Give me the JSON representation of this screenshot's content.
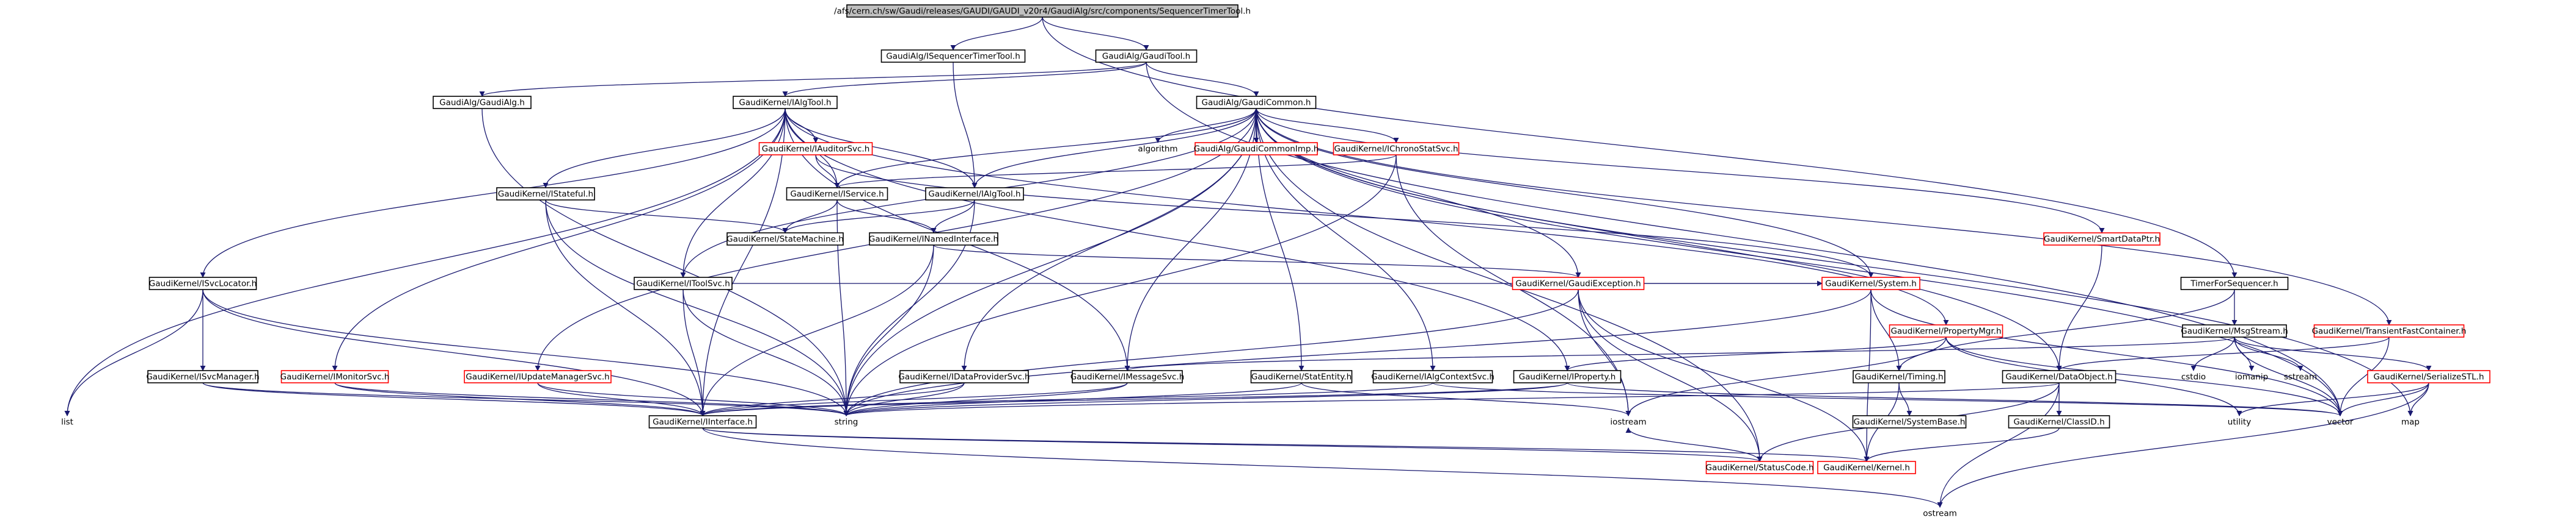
{
  "graph": {
    "nodes": [
      {
        "id": "root",
        "label": "/afs/cern.ch/sw/Gaudi/releases/GAUDI/GAUDI_v20r4/GaudiAlg/src/components/SequencerTimerTool.h",
        "style": "root"
      },
      {
        "id": "seqtt",
        "label": "GaudiAlg/ISequencerTimerTool.h",
        "style": "normal"
      },
      {
        "id": "gtool",
        "label": "GaudiAlg/GaudiTool.h",
        "style": "normal"
      },
      {
        "id": "tfs",
        "label": "TimerForSequencer.h",
        "style": "normal"
      },
      {
        "id": "galg",
        "label": "GaudiAlg/GaudiAlg.h",
        "style": "normal"
      },
      {
        "id": "ialgtool",
        "label": "GaudiKernel/IAlgTool.h",
        "style": "normal"
      },
      {
        "id": "gcommon",
        "label": "GaudiAlg/GaudiCommon.h",
        "style": "normal"
      },
      {
        "id": "algorithm",
        "label": "algorithm",
        "style": "plain"
      },
      {
        "id": "gcommonimp",
        "label": "GaudiAlg/GaudiCommonImp.h",
        "style": "missing"
      },
      {
        "id": "chrono",
        "label": "GaudiKernel/IChronoStatSvc.h",
        "style": "missing"
      },
      {
        "id": "iauditor",
        "label": "GaudiKernel/IAuditorSvc.h",
        "style": "missing"
      },
      {
        "id": "istateful",
        "label": "GaudiKernel/IStateful.h",
        "style": "normal"
      },
      {
        "id": "iservice",
        "label": "GaudiKernel/IService.h",
        "style": "normal"
      },
      {
        "id": "ialgtool2",
        "label": "GaudiKernel/IAlgTool.h",
        "style": "normal"
      },
      {
        "id": "smartdata",
        "label": "GaudiKernel/SmartDataPtr.h",
        "style": "missing"
      },
      {
        "id": "statemachine",
        "label": "GaudiKernel/StateMachine.h",
        "style": "normal"
      },
      {
        "id": "inamed",
        "label": "GaudiKernel/INamedInterface.h",
        "style": "normal"
      },
      {
        "id": "itoolsvc",
        "label": "GaudiKernel/IToolSvc.h",
        "style": "normal"
      },
      {
        "id": "gexception",
        "label": "GaudiKernel/GaudiException.h",
        "style": "missing"
      },
      {
        "id": "isvclocator",
        "label": "GaudiKernel/ISvcLocator.h",
        "style": "normal"
      },
      {
        "id": "system",
        "label": "GaudiKernel/System.h",
        "style": "missing"
      },
      {
        "id": "propmgr",
        "label": "GaudiKernel/PropertyMgr.h",
        "style": "missing"
      },
      {
        "id": "msgstream",
        "label": "GaudiKernel/MsgStream.h",
        "style": "normal"
      },
      {
        "id": "transientfast",
        "label": "GaudiKernel/TransientFastContainer.h",
        "style": "missing"
      },
      {
        "id": "isvcmanager",
        "label": "GaudiKernel/ISvcManager.h",
        "style": "normal"
      },
      {
        "id": "imonitor",
        "label": "GaudiKernel/IMonitorSvc.h",
        "style": "missing"
      },
      {
        "id": "iupdatemgr",
        "label": "GaudiKernel/IUpdateManagerSvc.h",
        "style": "missing"
      },
      {
        "id": "idataprovider",
        "label": "GaudiKernel/IDataProviderSvc.h",
        "style": "normal"
      },
      {
        "id": "imessage",
        "label": "GaudiKernel/IMessageSvc.h",
        "style": "normal"
      },
      {
        "id": "statentity",
        "label": "GaudiKernel/StatEntity.h",
        "style": "normal"
      },
      {
        "id": "ialgcontext",
        "label": "GaudiKernel/IAlgContextSvc.h",
        "style": "normal"
      },
      {
        "id": "iproperty",
        "label": "GaudiKernel/IProperty.h",
        "style": "normal"
      },
      {
        "id": "timing",
        "label": "GaudiKernel/Timing.h",
        "style": "normal"
      },
      {
        "id": "dataobject",
        "label": "GaudiKernel/DataObject.h",
        "style": "normal"
      },
      {
        "id": "cstdio",
        "label": "cstdio",
        "style": "plain"
      },
      {
        "id": "iomanip",
        "label": "iomanip",
        "style": "plain"
      },
      {
        "id": "sstream",
        "label": "sstream",
        "style": "plain"
      },
      {
        "id": "serialize",
        "label": "GaudiKernel/SerializeSTL.h",
        "style": "missing"
      },
      {
        "id": "list",
        "label": "list",
        "style": "plain"
      },
      {
        "id": "iinterface",
        "label": "GaudiKernel/IInterface.h",
        "style": "normal"
      },
      {
        "id": "string",
        "label": "string",
        "style": "plain"
      },
      {
        "id": "iostream",
        "label": "iostream",
        "style": "plain"
      },
      {
        "id": "systembase",
        "label": "GaudiKernel/SystemBase.h",
        "style": "normal"
      },
      {
        "id": "classid",
        "label": "GaudiKernel/ClassID.h",
        "style": "normal"
      },
      {
        "id": "utility",
        "label": "utility",
        "style": "plain"
      },
      {
        "id": "vector",
        "label": "vector",
        "style": "plain"
      },
      {
        "id": "map",
        "label": "map",
        "style": "plain"
      },
      {
        "id": "statuscode",
        "label": "GaudiKernel/StatusCode.h",
        "style": "missing"
      },
      {
        "id": "kernel",
        "label": "GaudiKernel/Kernel.h",
        "style": "missing"
      },
      {
        "id": "ostream",
        "label": "ostream",
        "style": "plain"
      }
    ],
    "edges": [
      [
        "root",
        "seqtt"
      ],
      [
        "root",
        "gtool"
      ],
      [
        "root",
        "tfs"
      ],
      [
        "seqtt",
        "ialgtool2"
      ],
      [
        "gtool",
        "galg"
      ],
      [
        "gtool",
        "ialgtool"
      ],
      [
        "gtool",
        "gcommon"
      ],
      [
        "gtool",
        "vector"
      ],
      [
        "galg",
        "string"
      ],
      [
        "tfs",
        "msgstream"
      ],
      [
        "tfs",
        "timing"
      ],
      [
        "ialgtool",
        "list"
      ],
      [
        "ialgtool",
        "isvclocator"
      ],
      [
        "ialgtool",
        "istateful"
      ],
      [
        "ialgtool",
        "iauditor"
      ],
      [
        "ialgtool",
        "iservice"
      ],
      [
        "ialgtool",
        "ialgtool2"
      ],
      [
        "ialgtool",
        "imessage"
      ],
      [
        "ialgtool",
        "iproperty"
      ],
      [
        "ialgtool",
        "imonitor"
      ],
      [
        "ialgtool",
        "itoolsvc"
      ],
      [
        "ialgtool",
        "propmgr"
      ],
      [
        "ialgtool",
        "iinterface"
      ],
      [
        "gcommon",
        "algorithm"
      ],
      [
        "gcommon",
        "gcommonimp"
      ],
      [
        "gcommon",
        "chrono"
      ],
      [
        "gcommon",
        "iservice"
      ],
      [
        "gcommon",
        "ialgtool2"
      ],
      [
        "gcommon",
        "smartdata"
      ],
      [
        "gcommon",
        "itoolsvc"
      ],
      [
        "gcommon",
        "gexception"
      ],
      [
        "gcommon",
        "system"
      ],
      [
        "gcommon",
        "iupdatemgr"
      ],
      [
        "gcommon",
        "idataprovider"
      ],
      [
        "gcommon",
        "imessage"
      ],
      [
        "gcommon",
        "statentity"
      ],
      [
        "gcommon",
        "ialgcontext"
      ],
      [
        "gcommon",
        "dataobject"
      ],
      [
        "gcommon",
        "transientfast"
      ],
      [
        "gcommon",
        "string"
      ],
      [
        "gcommon",
        "statuscode"
      ],
      [
        "gcommon",
        "vector"
      ],
      [
        "gcommon",
        "map"
      ],
      [
        "gcommonimp",
        "gcommon"
      ],
      [
        "chrono",
        "iservice"
      ],
      [
        "chrono",
        "string"
      ],
      [
        "chrono",
        "iostream"
      ],
      [
        "iauditor",
        "iservice"
      ],
      [
        "iauditor",
        "system"
      ],
      [
        "istateful",
        "statemachine"
      ],
      [
        "istateful",
        "iinterface"
      ],
      [
        "istateful",
        "string"
      ],
      [
        "iservice",
        "statemachine"
      ],
      [
        "iservice",
        "inamed"
      ],
      [
        "iservice",
        "string"
      ],
      [
        "ialgtool2",
        "statemachine"
      ],
      [
        "ialgtool2",
        "inamed"
      ],
      [
        "ialgtool2",
        "string"
      ],
      [
        "inamed",
        "iinterface"
      ],
      [
        "inamed",
        "string"
      ],
      [
        "inamed",
        "gexception"
      ],
      [
        "smartdata",
        "dataobject"
      ],
      [
        "itoolsvc",
        "iinterface"
      ],
      [
        "itoolsvc",
        "string"
      ],
      [
        "itoolsvc",
        "system"
      ],
      [
        "gexception",
        "system"
      ],
      [
        "gexception",
        "statuscode"
      ],
      [
        "gexception",
        "string"
      ],
      [
        "gexception",
        "iostream"
      ],
      [
        "gexception",
        "kernel"
      ],
      [
        "isvclocator",
        "isvcmanager"
      ],
      [
        "isvclocator",
        "list"
      ],
      [
        "isvclocator",
        "iinterface"
      ],
      [
        "isvclocator",
        "string"
      ],
      [
        "isvcmanager",
        "iinterface"
      ],
      [
        "isvcmanager",
        "string"
      ],
      [
        "imonitor",
        "iinterface"
      ],
      [
        "imonitor",
        "string"
      ],
      [
        "iupdatemgr",
        "iinterface"
      ],
      [
        "iupdatemgr",
        "string"
      ],
      [
        "idataprovider",
        "iinterface"
      ],
      [
        "idataprovider",
        "string"
      ],
      [
        "imessage",
        "iinterface"
      ],
      [
        "imessage",
        "string"
      ],
      [
        "statentity",
        "string"
      ],
      [
        "statentity",
        "iostream"
      ],
      [
        "ialgcontext",
        "iinterface"
      ],
      [
        "ialgcontext",
        "vector"
      ],
      [
        "iproperty",
        "iinterface"
      ],
      [
        "iproperty",
        "string"
      ],
      [
        "iproperty",
        "vector"
      ],
      [
        "propmgr",
        "iproperty"
      ],
      [
        "propmgr",
        "vector"
      ],
      [
        "propmgr",
        "utility"
      ],
      [
        "propmgr",
        "iostream"
      ],
      [
        "system",
        "kernel"
      ],
      [
        "system",
        "string"
      ],
      [
        "system",
        "timing"
      ],
      [
        "system",
        "vector"
      ],
      [
        "msgstream",
        "imessage"
      ],
      [
        "msgstream",
        "serialize"
      ],
      [
        "msgstream",
        "cstdio"
      ],
      [
        "msgstream",
        "iomanip"
      ],
      [
        "msgstream",
        "sstream"
      ],
      [
        "msgstream",
        "vector"
      ],
      [
        "timing",
        "systembase"
      ],
      [
        "timing",
        "kernel"
      ],
      [
        "dataobject",
        "classid"
      ],
      [
        "dataobject",
        "statuscode"
      ],
      [
        "dataobject",
        "string"
      ],
      [
        "dataobject",
        "ostream"
      ],
      [
        "classid",
        "kernel"
      ],
      [
        "serialize",
        "vector"
      ],
      [
        "serialize",
        "map"
      ],
      [
        "serialize",
        "utility"
      ],
      [
        "serialize",
        "ostream"
      ],
      [
        "transientfast",
        "dataobject"
      ],
      [
        "transientfast",
        "vector"
      ],
      [
        "iinterface",
        "statuscode"
      ],
      [
        "iinterface",
        "kernel"
      ],
      [
        "iinterface",
        "ostream"
      ],
      [
        "statuscode",
        "iostream"
      ]
    ]
  }
}
